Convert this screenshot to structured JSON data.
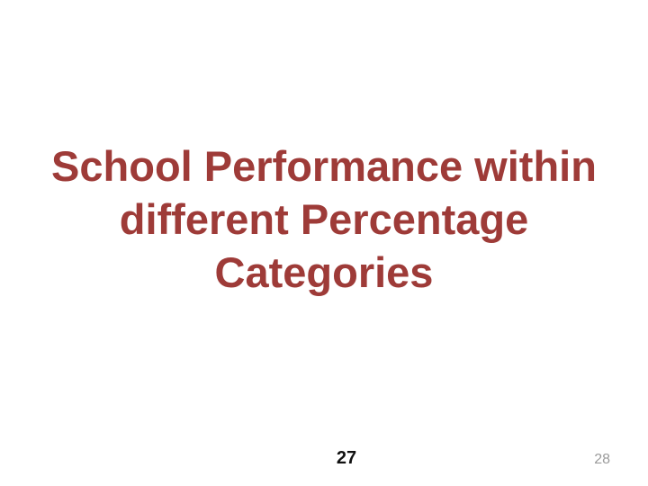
{
  "slide": {
    "title_lines": [
      "School Performance within",
      "different Percentage",
      "Categories"
    ],
    "slide_number": "27",
    "page_indicator": "28",
    "colors": {
      "background": "#ffffff",
      "title": "#9e3b38",
      "slide_number": "#111111",
      "page_indicator": "#9a9a9a"
    }
  }
}
